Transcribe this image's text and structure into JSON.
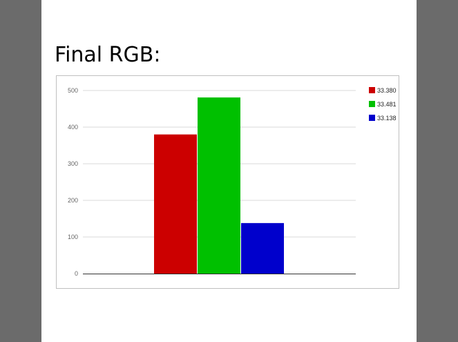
{
  "slide": {
    "title": "Final RGB:"
  },
  "chart_data": {
    "type": "bar",
    "title": "",
    "xlabel": "",
    "ylabel": "",
    "ylim": [
      0,
      500
    ],
    "yticks": [
      0,
      100,
      200,
      300,
      400,
      500
    ],
    "grid": true,
    "legend_position": "right",
    "series": [
      {
        "name": "33.380",
        "value": 380,
        "color": "#cc0000"
      },
      {
        "name": "33.481",
        "value": 481,
        "color": "#00c000"
      },
      {
        "name": "33.138",
        "value": 138,
        "color": "#0000cc"
      }
    ]
  }
}
